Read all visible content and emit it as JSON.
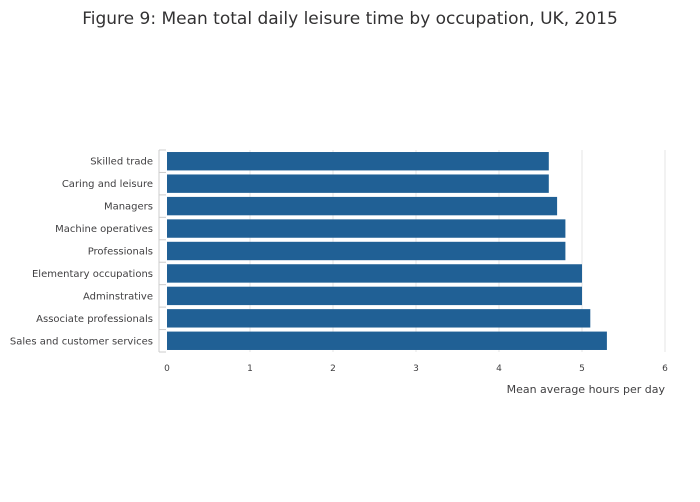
{
  "chart_data": {
    "type": "bar",
    "orientation": "horizontal",
    "title": "Figure 9: Mean total daily leisure time by occupation, UK, 2015",
    "xlabel": "Mean average hours per day",
    "ylabel": "",
    "xlim": [
      0,
      6
    ],
    "xticks": [
      "0",
      "1",
      "2",
      "3",
      "4",
      "5",
      "6"
    ],
    "categories": [
      "Skilled trade",
      "Caring and leisure",
      "Managers",
      "Machine operatives",
      "Professionals",
      "Elementary occupations",
      "Adminstrative",
      "Associate professionals",
      "Sales and customer services"
    ],
    "values": [
      4.6,
      4.6,
      4.7,
      4.8,
      4.8,
      5.0,
      5.0,
      5.1,
      5.3
    ],
    "bar_color": "#206095",
    "grid": "vertical"
  }
}
